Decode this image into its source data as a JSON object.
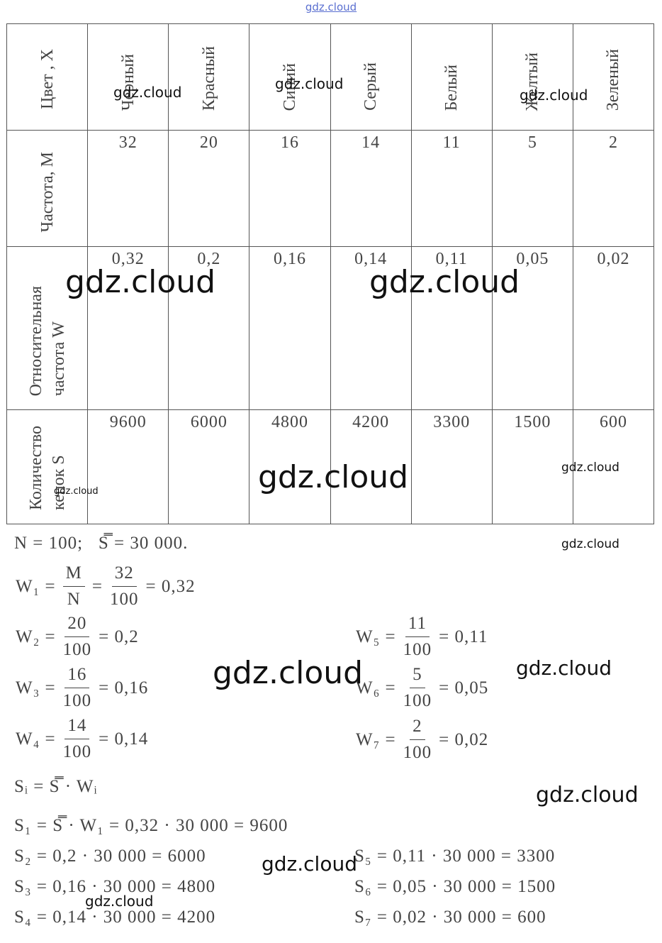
{
  "header": {
    "site": "gdz.cloud"
  },
  "table": {
    "row_labels": [
      [
        "Цвет , X"
      ],
      [
        "Частота, M"
      ],
      [
        "Относительная",
        "частота W"
      ],
      [
        "Количество",
        "кепок S"
      ]
    ],
    "colors": [
      "Черный",
      "Красный",
      "Синий",
      "Серый",
      "Белый",
      "Желтый",
      "Зеленый"
    ],
    "rows": [
      [
        "32",
        "20",
        "16",
        "14",
        "11",
        "5",
        "2"
      ],
      [
        "0,32",
        "0,2",
        "0,16",
        "0,14",
        "0,11",
        "0,05",
        "0,02"
      ],
      [
        "9600",
        "6000",
        "4800",
        "4200",
        "3300",
        "1500",
        "600"
      ]
    ]
  },
  "given": "N = 100;   S̿ = 30 000.",
  "w_formulas": [
    [
      {
        "text": "W₁ ="
      },
      {
        "num": "M",
        "den": "N"
      },
      {
        "text": "="
      },
      {
        "num": "32",
        "den": "100"
      },
      {
        "text": "= 0,32"
      }
    ],
    [
      {
        "text": "W₂ ="
      },
      {
        "num": "20",
        "den": "100"
      },
      {
        "text": "= 0,2"
      }
    ],
    [
      {
        "text": "W₃ ="
      },
      {
        "num": "16",
        "den": "100"
      },
      {
        "text": "= 0,16"
      }
    ],
    [
      {
        "text": "W₄ ="
      },
      {
        "num": "14",
        "den": "100"
      },
      {
        "text": "= 0,14"
      }
    ],
    [
      {
        "text": "W₅ ="
      },
      {
        "num": "11",
        "den": "100"
      },
      {
        "text": "= 0,11"
      }
    ],
    [
      {
        "text": "W₆ ="
      },
      {
        "num": "5",
        "den": "100"
      },
      {
        "text": "= 0,05"
      }
    ],
    [
      {
        "text": "W₇ ="
      },
      {
        "num": "2",
        "den": "100"
      },
      {
        "text": "= 0,02"
      }
    ]
  ],
  "s_formulas": [
    "Sᵢ = S̿ · Wᵢ",
    "S₁ = S̿ · W₁ = 0,32 · 30 000 = 9600",
    "S₂ = 0,2 · 30 000 = 6000",
    "S₃ = 0,16 · 30 000 = 4800",
    "S₄ = 0,14 · 30 000 = 4200",
    "S₅ = 0,11 · 30 000 = 3300",
    "S₆ = 0,05 · 30 000 = 1500",
    "S₇ = 0,02 · 30 000 = 600"
  ],
  "watermarks": [
    "gdz.cloud",
    "gdz.cloud",
    "gdz.cloud",
    "gdz.cloud",
    "gdz.cloud",
    "gdz.cloud",
    "gdz.cloud",
    "gdz.cloud",
    "gdz.cloud",
    "gdz.cloud",
    "gdz.cloud",
    "gdz.cloud",
    "gdz.cloud",
    "gdz.cloud"
  ]
}
